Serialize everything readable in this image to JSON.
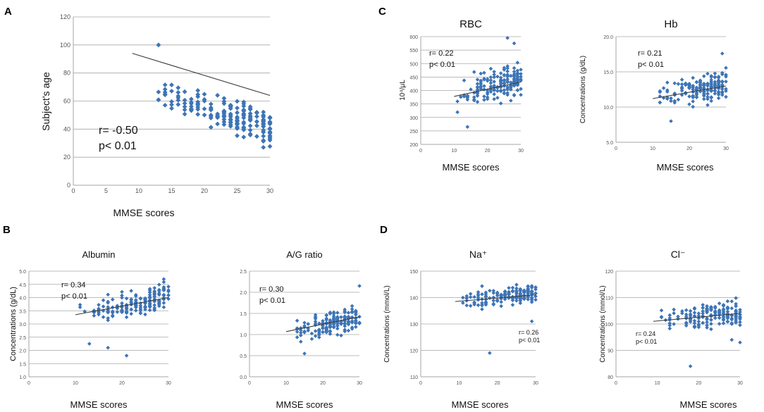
{
  "figure": {
    "point_color": "#3d74b6",
    "grid_color": "#a6a6a6",
    "line_color": "#3a3a3a",
    "panel_letters": [
      "A",
      "B",
      "C",
      "D"
    ]
  },
  "chart_data": [
    {
      "id": "age",
      "panel": "A",
      "type": "scatter",
      "title": "",
      "xlabel": "MMSE scores",
      "ylabel": "Subject's age",
      "xlim": [
        0,
        30
      ],
      "ylim": [
        0,
        120
      ],
      "xticks": [
        0,
        5,
        10,
        15,
        20,
        25,
        30
      ],
      "yticks": [
        0,
        20,
        40,
        60,
        80,
        100,
        120
      ],
      "ytick_labels": [
        "0",
        "20",
        "40",
        "60",
        "80",
        "100",
        "120"
      ],
      "stats": [
        "r= -0.50",
        "p< 0.01"
      ],
      "trend": [
        [
          9,
          94
        ],
        [
          30,
          64
        ]
      ],
      "outliers": [
        [
          13,
          100
        ],
        [
          29,
          27
        ],
        [
          30,
          40
        ],
        [
          30,
          44
        ]
      ],
      "n_points": 180,
      "center": [
        85,
        -1.45
      ],
      "noise": 9
    },
    {
      "id": "albumin",
      "panel": "B",
      "type": "scatter",
      "title": "Albumin",
      "xlabel": "MMSE scores",
      "ylabel": "Concentrations (g/dL)",
      "xlim": [
        0,
        30
      ],
      "ylim": [
        1.0,
        5.0
      ],
      "xticks": [
        0,
        10,
        20,
        30
      ],
      "yticks": [
        1.0,
        1.5,
        2.0,
        2.5,
        3.0,
        3.5,
        4.0,
        4.5,
        5.0
      ],
      "ytick_labels": [
        "1.0",
        "1.5",
        "2.0",
        "2.5",
        "3.0",
        "3.5",
        "4.0",
        "4.5",
        "5.0"
      ],
      "stats": [
        "r= 0.34",
        "p< 0.01"
      ],
      "trend": [
        [
          10,
          3.35
        ],
        [
          30,
          4.0
        ]
      ],
      "outliers": [
        [
          21,
          1.8
        ],
        [
          17,
          2.1
        ],
        [
          13,
          2.25
        ]
      ],
      "n_points": 180,
      "center": [
        3.0,
        0.035
      ],
      "noise": 0.45
    },
    {
      "id": "ag",
      "panel": "B",
      "type": "scatter",
      "title": "A/G ratio",
      "xlabel": "MMSE scores",
      "ylabel": "",
      "xlim": [
        0,
        30
      ],
      "ylim": [
        0,
        2.5
      ],
      "xticks": [
        0,
        10,
        20,
        30
      ],
      "yticks": [
        0.0,
        0.5,
        1.0,
        1.5,
        2.0,
        2.5
      ],
      "ytick_labels": [
        "0.0",
        "0.5",
        "1.0",
        "1.5",
        "2.0",
        "2.5"
      ],
      "stats": [
        "r= 0.30",
        "p< 0.01"
      ],
      "trend": [
        [
          10,
          1.07
        ],
        [
          30,
          1.42
        ]
      ],
      "outliers": [
        [
          30,
          2.15
        ],
        [
          15,
          0.55
        ]
      ],
      "n_points": 170,
      "center": [
        0.9,
        0.016
      ],
      "noise": 0.22
    },
    {
      "id": "rbc",
      "panel": "C",
      "type": "scatter",
      "title": "RBC",
      "xlabel": "MMSE scores",
      "ylabel": "10⁴/μL",
      "xlim": [
        0,
        30
      ],
      "ylim": [
        200,
        600
      ],
      "xticks": [
        0,
        10,
        20,
        30
      ],
      "yticks": [
        200,
        250,
        300,
        350,
        400,
        450,
        500,
        550,
        600
      ],
      "ytick_labels": [
        "200",
        "250",
        "300",
        "350",
        "400",
        "450",
        "500",
        "550",
        "600"
      ],
      "stats": [
        "r= 0.22",
        "p< 0.01"
      ],
      "trend": [
        [
          10,
          378
        ],
        [
          30,
          432
        ]
      ],
      "outliers": [
        [
          26,
          595
        ],
        [
          14,
          265
        ],
        [
          28,
          575
        ]
      ],
      "n_points": 175,
      "center": [
        355,
        2.8
      ],
      "noise": 45
    },
    {
      "id": "hb",
      "panel": "C",
      "type": "scatter",
      "title": "Hb",
      "xlabel": "MMSE scores",
      "ylabel": "Concentrations (g/dL)",
      "xlim": [
        0,
        30
      ],
      "ylim": [
        5.0,
        20.0
      ],
      "xticks": [
        0,
        10,
        20,
        30
      ],
      "yticks": [
        5.0,
        10.0,
        15.0,
        20.0
      ],
      "ytick_labels": [
        "5.0",
        "10.0",
        "15.0",
        "20.0"
      ],
      "stats": [
        "r= 0.21",
        "p< 0.01"
      ],
      "trend": [
        [
          10,
          11.2
        ],
        [
          30,
          13.0
        ]
      ],
      "outliers": [
        [
          29,
          17.6
        ],
        [
          15,
          8.0
        ]
      ],
      "n_points": 175,
      "center": [
        10.5,
        0.09
      ],
      "noise": 1.5
    },
    {
      "id": "na",
      "panel": "D",
      "type": "scatter",
      "title": "Na⁺",
      "xlabel": "MMSE scores",
      "ylabel": "Concentrations (mmol/L)",
      "xlim": [
        0,
        30
      ],
      "ylim": [
        110,
        150
      ],
      "xticks": [
        0,
        10,
        20,
        30
      ],
      "yticks": [
        110,
        120,
        130,
        140,
        150
      ],
      "ytick_labels": [
        "110",
        "120",
        "130",
        "140",
        "150"
      ],
      "stats": [
        "r= 0.26",
        "p< 0.01"
      ],
      "trend": [
        [
          9,
          138.5
        ],
        [
          30,
          141
        ]
      ],
      "outliers": [
        [
          18,
          119
        ],
        [
          29,
          131
        ]
      ],
      "n_points": 175,
      "center": [
        137.8,
        0.12
      ],
      "noise": 2.8
    },
    {
      "id": "cl",
      "panel": "D",
      "type": "scatter",
      "title": "Cl⁻",
      "xlabel": "MMSE scores",
      "ylabel": "Concentrations (mmol/L)",
      "xlim": [
        0,
        30
      ],
      "ylim": [
        80,
        120
      ],
      "xticks": [
        0,
        10,
        20,
        30
      ],
      "yticks": [
        80,
        90,
        100,
        110,
        120
      ],
      "ytick_labels": [
        "80",
        "90",
        "100",
        "110",
        "120"
      ],
      "stats": [
        "r= 0.24",
        "p< 0.01"
      ],
      "trend": [
        [
          9,
          101
        ],
        [
          30,
          104
        ]
      ],
      "outliers": [
        [
          18,
          84
        ],
        [
          30,
          93
        ],
        [
          28,
          94
        ]
      ],
      "n_points": 170,
      "center": [
        100,
        0.14
      ],
      "noise": 4
    }
  ]
}
